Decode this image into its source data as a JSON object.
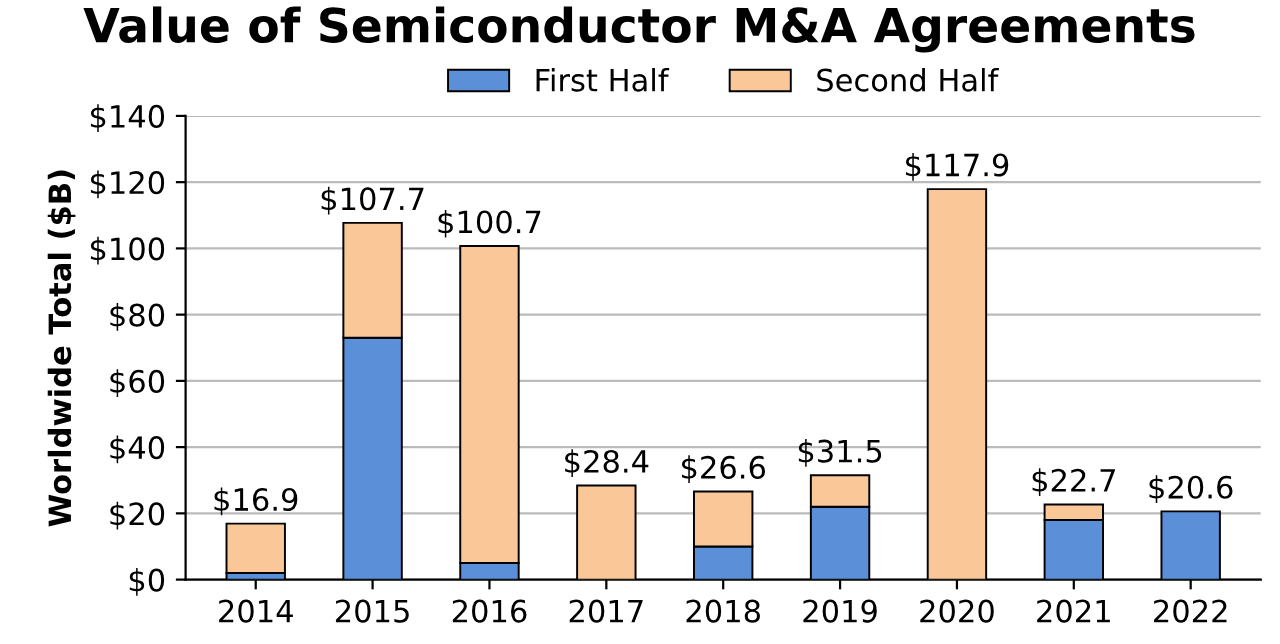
{
  "chart_data": {
    "type": "bar",
    "title": "Value of Semiconductor M&A Agreements",
    "ylabel": "Worldwide Total ($B)",
    "categories": [
      "2014",
      "2015",
      "2016",
      "2017",
      "2018",
      "2019",
      "2020",
      "2021",
      "2022"
    ],
    "series": [
      {
        "name": "First Half",
        "color": "#5b8fd8",
        "values": [
          2,
          73,
          5,
          null,
          10,
          22,
          null,
          18,
          20.6
        ]
      },
      {
        "name": "Second Half",
        "color": "#fac898",
        "values": [
          14.9,
          34.7,
          95.7,
          28.4,
          16.6,
          9.5,
          117.9,
          4.7,
          null
        ]
      }
    ],
    "stacked": true,
    "totals": [
      "$16.9",
      "$107.7",
      "$100.7",
      "$28.4",
      "$26.6",
      "$31.5",
      "$117.9",
      "$22.7",
      "$20.6"
    ],
    "ylim": [
      0,
      140
    ],
    "yticks": [
      {
        "value": 0,
        "label": "$0"
      },
      {
        "value": 20,
        "label": "$20"
      },
      {
        "value": 40,
        "label": "$40"
      },
      {
        "value": 60,
        "label": "$60"
      },
      {
        "value": 80,
        "label": "$80"
      },
      {
        "value": 100,
        "label": "$100"
      },
      {
        "value": 120,
        "label": "$120"
      },
      {
        "value": 140,
        "label": "$140"
      }
    ],
    "grid": "y",
    "legend": "top"
  }
}
